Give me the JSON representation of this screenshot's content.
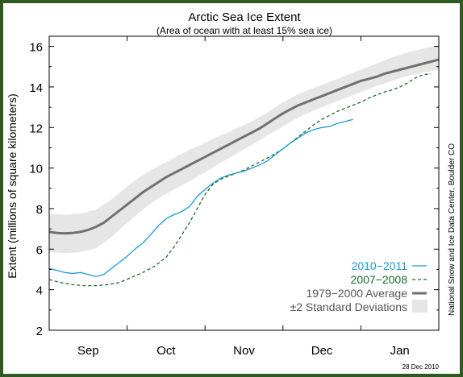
{
  "chart_data": {
    "type": "line",
    "title": "Arctic Sea Ice Extent",
    "subtitle": "(Area of ocean with at least 15% sea ice)",
    "ylabel": "Extent (millions of square kilometers)",
    "xlabel": "",
    "ylim": [
      2,
      16.5
    ],
    "yticks": [
      "2",
      "4",
      "6",
      "8",
      "10",
      "12",
      "14",
      "16"
    ],
    "xlim": [
      0,
      5
    ],
    "month_labels": [
      {
        "label": "Sep",
        "pos": 0.5
      },
      {
        "label": "Oct",
        "pos": 1.5
      },
      {
        "label": "Nov",
        "pos": 2.5
      },
      {
        "label": "Dec",
        "pos": 3.5
      },
      {
        "label": "Jan",
        "pos": 4.5
      }
    ],
    "grid": false,
    "legend_position": "bottom-right",
    "series": [
      {
        "name": "2010−2011",
        "color": "#1a9ad6",
        "style": "solid",
        "points": [
          [
            0,
            5.05
          ],
          [
            0.1,
            4.95
          ],
          [
            0.2,
            4.85
          ],
          [
            0.3,
            4.8
          ],
          [
            0.4,
            4.85
          ],
          [
            0.5,
            4.75
          ],
          [
            0.6,
            4.65
          ],
          [
            0.7,
            4.75
          ],
          [
            0.8,
            5.05
          ],
          [
            0.9,
            5.35
          ],
          [
            1.0,
            5.65
          ],
          [
            1.1,
            6.0
          ],
          [
            1.2,
            6.3
          ],
          [
            1.3,
            6.7
          ],
          [
            1.4,
            7.15
          ],
          [
            1.5,
            7.5
          ],
          [
            1.6,
            7.7
          ],
          [
            1.7,
            7.85
          ],
          [
            1.8,
            8.1
          ],
          [
            1.9,
            8.6
          ],
          [
            2.0,
            8.95
          ],
          [
            2.1,
            9.25
          ],
          [
            2.2,
            9.5
          ],
          [
            2.3,
            9.65
          ],
          [
            2.4,
            9.75
          ],
          [
            2.5,
            9.85
          ],
          [
            2.6,
            10.0
          ],
          [
            2.7,
            10.15
          ],
          [
            2.8,
            10.35
          ],
          [
            2.9,
            10.65
          ],
          [
            3.0,
            10.95
          ],
          [
            3.1,
            11.25
          ],
          [
            3.2,
            11.5
          ],
          [
            3.3,
            11.75
          ],
          [
            3.4,
            11.9
          ],
          [
            3.5,
            12.0
          ],
          [
            3.6,
            12.05
          ],
          [
            3.7,
            12.2
          ],
          [
            3.8,
            12.3
          ],
          [
            3.9,
            12.4
          ]
        ]
      },
      {
        "name": "2007−2008",
        "color": "#1e6a2a",
        "style": "dashed",
        "points": [
          [
            0,
            4.5
          ],
          [
            0.15,
            4.35
          ],
          [
            0.3,
            4.25
          ],
          [
            0.45,
            4.2
          ],
          [
            0.6,
            4.2
          ],
          [
            0.75,
            4.25
          ],
          [
            0.9,
            4.35
          ],
          [
            1.05,
            4.6
          ],
          [
            1.2,
            4.85
          ],
          [
            1.35,
            5.15
          ],
          [
            1.5,
            5.6
          ],
          [
            1.6,
            6.1
          ],
          [
            1.7,
            6.7
          ],
          [
            1.8,
            7.3
          ],
          [
            1.9,
            8.0
          ],
          [
            2.0,
            8.7
          ],
          [
            2.1,
            9.2
          ],
          [
            2.2,
            9.45
          ],
          [
            2.3,
            9.6
          ],
          [
            2.4,
            9.75
          ],
          [
            2.5,
            9.9
          ],
          [
            2.6,
            10.1
          ],
          [
            2.7,
            10.3
          ],
          [
            2.8,
            10.5
          ],
          [
            2.9,
            10.7
          ],
          [
            3.0,
            10.95
          ],
          [
            3.1,
            11.25
          ],
          [
            3.2,
            11.55
          ],
          [
            3.3,
            11.85
          ],
          [
            3.4,
            12.15
          ],
          [
            3.5,
            12.4
          ],
          [
            3.6,
            12.6
          ],
          [
            3.7,
            12.8
          ],
          [
            3.8,
            12.95
          ],
          [
            3.9,
            13.1
          ],
          [
            4.0,
            13.25
          ],
          [
            4.1,
            13.45
          ],
          [
            4.2,
            13.6
          ],
          [
            4.3,
            13.75
          ],
          [
            4.4,
            13.85
          ],
          [
            4.5,
            14.0
          ],
          [
            4.6,
            14.2
          ],
          [
            4.7,
            14.45
          ],
          [
            4.8,
            14.6
          ],
          [
            4.9,
            14.65
          ]
        ]
      },
      {
        "name": "1979−2000 Average",
        "color": "#707070",
        "style": "solid",
        "points": [
          [
            0,
            6.85
          ],
          [
            0.1,
            6.8
          ],
          [
            0.2,
            6.78
          ],
          [
            0.3,
            6.8
          ],
          [
            0.4,
            6.85
          ],
          [
            0.5,
            6.95
          ],
          [
            0.6,
            7.1
          ],
          [
            0.7,
            7.3
          ],
          [
            0.8,
            7.6
          ],
          [
            0.9,
            7.9
          ],
          [
            1.0,
            8.2
          ],
          [
            1.1,
            8.5
          ],
          [
            1.2,
            8.8
          ],
          [
            1.3,
            9.05
          ],
          [
            1.4,
            9.3
          ],
          [
            1.5,
            9.55
          ],
          [
            1.6,
            9.75
          ],
          [
            1.7,
            9.95
          ],
          [
            1.8,
            10.15
          ],
          [
            1.9,
            10.35
          ],
          [
            2.0,
            10.55
          ],
          [
            2.1,
            10.75
          ],
          [
            2.2,
            10.95
          ],
          [
            2.3,
            11.15
          ],
          [
            2.4,
            11.35
          ],
          [
            2.5,
            11.55
          ],
          [
            2.6,
            11.75
          ],
          [
            2.7,
            11.95
          ],
          [
            2.8,
            12.2
          ],
          [
            2.9,
            12.45
          ],
          [
            3.0,
            12.7
          ],
          [
            3.1,
            12.9
          ],
          [
            3.2,
            13.1
          ],
          [
            3.3,
            13.25
          ],
          [
            3.4,
            13.4
          ],
          [
            3.5,
            13.55
          ],
          [
            3.6,
            13.7
          ],
          [
            3.7,
            13.85
          ],
          [
            3.8,
            14.0
          ],
          [
            3.9,
            14.15
          ],
          [
            4.0,
            14.3
          ],
          [
            4.1,
            14.4
          ],
          [
            4.2,
            14.5
          ],
          [
            4.3,
            14.65
          ],
          [
            4.4,
            14.75
          ],
          [
            4.5,
            14.85
          ],
          [
            4.6,
            14.95
          ],
          [
            4.7,
            15.05
          ],
          [
            4.8,
            15.15
          ],
          [
            4.9,
            15.25
          ],
          [
            5.0,
            15.35
          ]
        ]
      }
    ],
    "band": {
      "name": "±2 Standard Deviations",
      "color": "#e6e6e6",
      "upper": [
        [
          0,
          7.75
        ],
        [
          0.2,
          7.7
        ],
        [
          0.4,
          7.75
        ],
        [
          0.6,
          7.95
        ],
        [
          0.8,
          8.45
        ],
        [
          1.0,
          9.1
        ],
        [
          1.2,
          9.65
        ],
        [
          1.4,
          10.1
        ],
        [
          1.6,
          10.5
        ],
        [
          1.8,
          10.9
        ],
        [
          2.0,
          11.25
        ],
        [
          2.2,
          11.6
        ],
        [
          2.4,
          11.95
        ],
        [
          2.6,
          12.3
        ],
        [
          2.8,
          12.75
        ],
        [
          3.0,
          13.25
        ],
        [
          3.2,
          13.65
        ],
        [
          3.4,
          13.95
        ],
        [
          3.6,
          14.25
        ],
        [
          3.8,
          14.55
        ],
        [
          4.0,
          14.85
        ],
        [
          4.2,
          15.15
        ],
        [
          4.4,
          15.45
        ],
        [
          4.6,
          15.7
        ],
        [
          4.8,
          15.9
        ],
        [
          5.0,
          16.05
        ]
      ],
      "lower": [
        [
          0,
          5.85
        ],
        [
          0.2,
          5.8
        ],
        [
          0.4,
          5.85
        ],
        [
          0.6,
          6.05
        ],
        [
          0.8,
          6.6
        ],
        [
          1.0,
          7.3
        ],
        [
          1.2,
          7.95
        ],
        [
          1.4,
          8.5
        ],
        [
          1.6,
          8.95
        ],
        [
          1.8,
          9.35
        ],
        [
          2.0,
          9.8
        ],
        [
          2.2,
          10.25
        ],
        [
          2.4,
          10.7
        ],
        [
          2.6,
          11.15
        ],
        [
          2.8,
          11.6
        ],
        [
          3.0,
          12.05
        ],
        [
          3.2,
          12.5
        ],
        [
          3.4,
          12.85
        ],
        [
          3.6,
          13.15
        ],
        [
          3.8,
          13.45
        ],
        [
          4.0,
          13.75
        ],
        [
          4.2,
          14.05
        ],
        [
          4.4,
          14.3
        ],
        [
          4.6,
          14.55
        ],
        [
          4.8,
          14.7
        ],
        [
          5.0,
          14.85
        ]
      ]
    },
    "side_credit": "National Snow and Ice Data Center, Boulder CO",
    "date_stamp": "28 Dec 2010"
  }
}
